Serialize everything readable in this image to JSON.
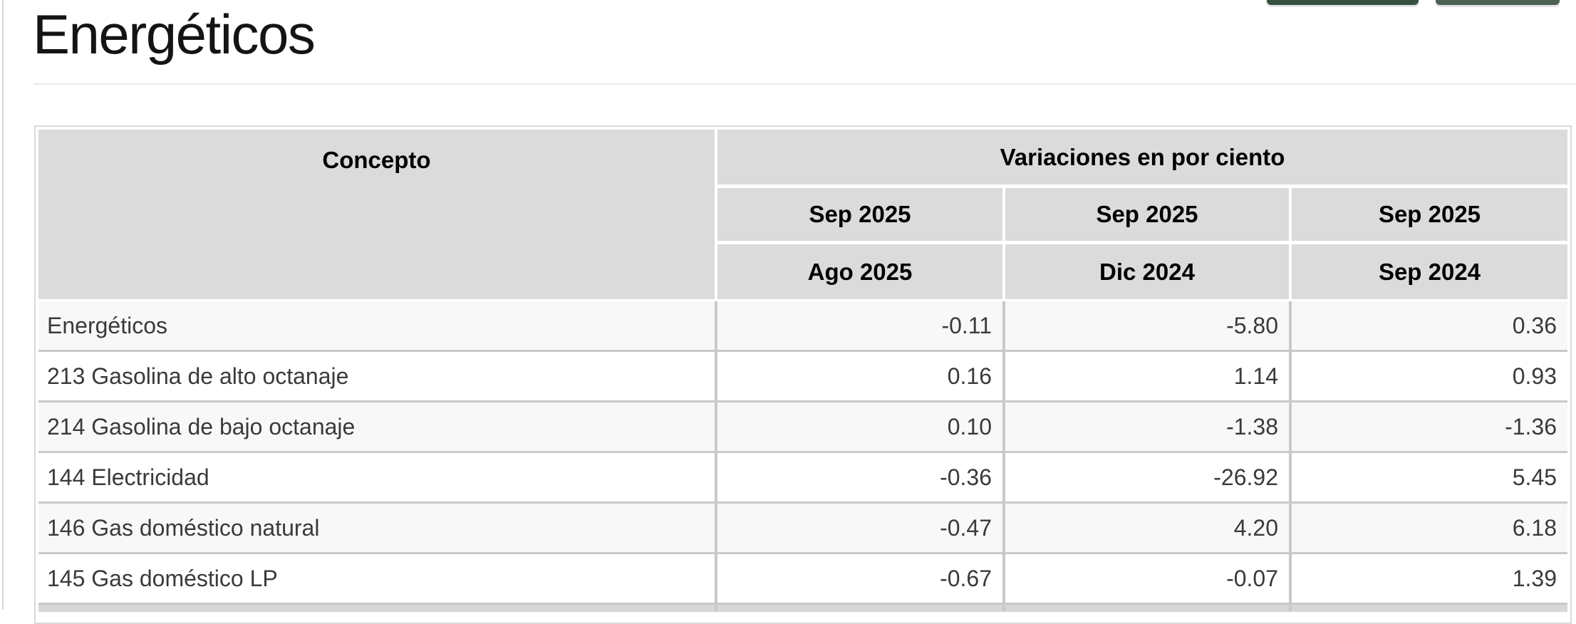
{
  "page": {
    "title": "Energéticos"
  },
  "top_nav": {
    "left_button": {
      "icon": "nav-button-partial",
      "color": "#36503f"
    },
    "right_button": {
      "icon": "nav-button-partial",
      "color": "#4d6154"
    }
  },
  "colors": {
    "header_cell_bg": "#dbdbdb",
    "alt_row_bg": "#f8f8f8",
    "grid_line": "#c9c9c9",
    "accent_green_dark": "#36503f",
    "accent_green_light": "#4d6154"
  },
  "table": {
    "concepto_header": "Concepto",
    "group_header": "Variaciones en por ciento",
    "period_headers": [
      {
        "numerator": "Sep 2025",
        "denominator": "Ago 2025"
      },
      {
        "numerator": "Sep 2025",
        "denominator": "Dic 2024"
      },
      {
        "numerator": "Sep 2025",
        "denominator": "Sep 2024"
      }
    ],
    "rows": [
      {
        "concepto": "Energéticos",
        "values": [
          "-0.11",
          "-5.80",
          "0.36"
        ]
      },
      {
        "concepto": "213 Gasolina de alto octanaje",
        "values": [
          "0.16",
          "1.14",
          "0.93"
        ]
      },
      {
        "concepto": "214 Gasolina de bajo octanaje",
        "values": [
          "0.10",
          "-1.38",
          "-1.36"
        ]
      },
      {
        "concepto": "144 Electricidad",
        "values": [
          "-0.36",
          "-26.92",
          "5.45"
        ]
      },
      {
        "concepto": "146 Gas doméstico natural",
        "values": [
          "-0.47",
          "4.20",
          "6.18"
        ]
      },
      {
        "concepto": "145 Gas doméstico LP",
        "values": [
          "-0.67",
          "-0.07",
          "1.39"
        ]
      }
    ]
  }
}
